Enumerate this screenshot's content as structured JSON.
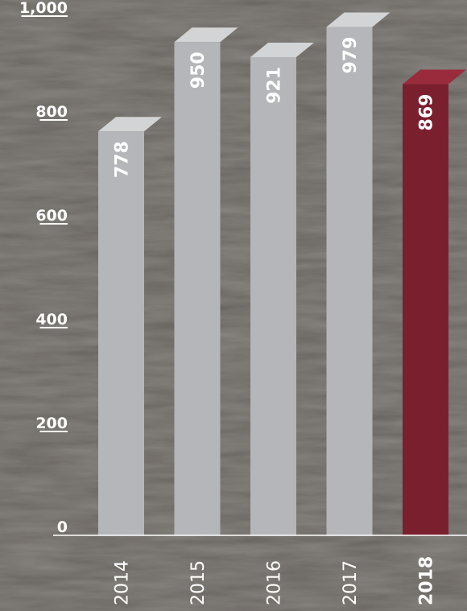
{
  "chart_data": {
    "type": "bar",
    "categories": [
      "2014",
      "2015",
      "2016",
      "2017",
      "2018"
    ],
    "values": [
      778,
      950,
      921,
      979,
      869
    ],
    "value_labels": [
      "778",
      "950",
      "921",
      "979",
      "869"
    ],
    "highlight_category": "2018",
    "ylim": [
      0,
      1000
    ],
    "yticks": [
      {
        "value": 0,
        "label": "0"
      },
      {
        "value": 200,
        "label": "200"
      },
      {
        "value": 400,
        "label": "400"
      },
      {
        "value": 600,
        "label": "600"
      },
      {
        "value": 800,
        "label": "800"
      },
      {
        "value": 1000,
        "label": "1,000"
      }
    ],
    "title": "",
    "xlabel": "",
    "ylabel": "",
    "grid": false,
    "legend": "none"
  },
  "colors": {
    "bar": "#b5b6b9",
    "bar_top": "#d3d4d6",
    "highlight_bar": "#7a1f2e",
    "highlight_top": "#9a2b3d",
    "text": "#ffffff",
    "axis": "#ffffff"
  }
}
